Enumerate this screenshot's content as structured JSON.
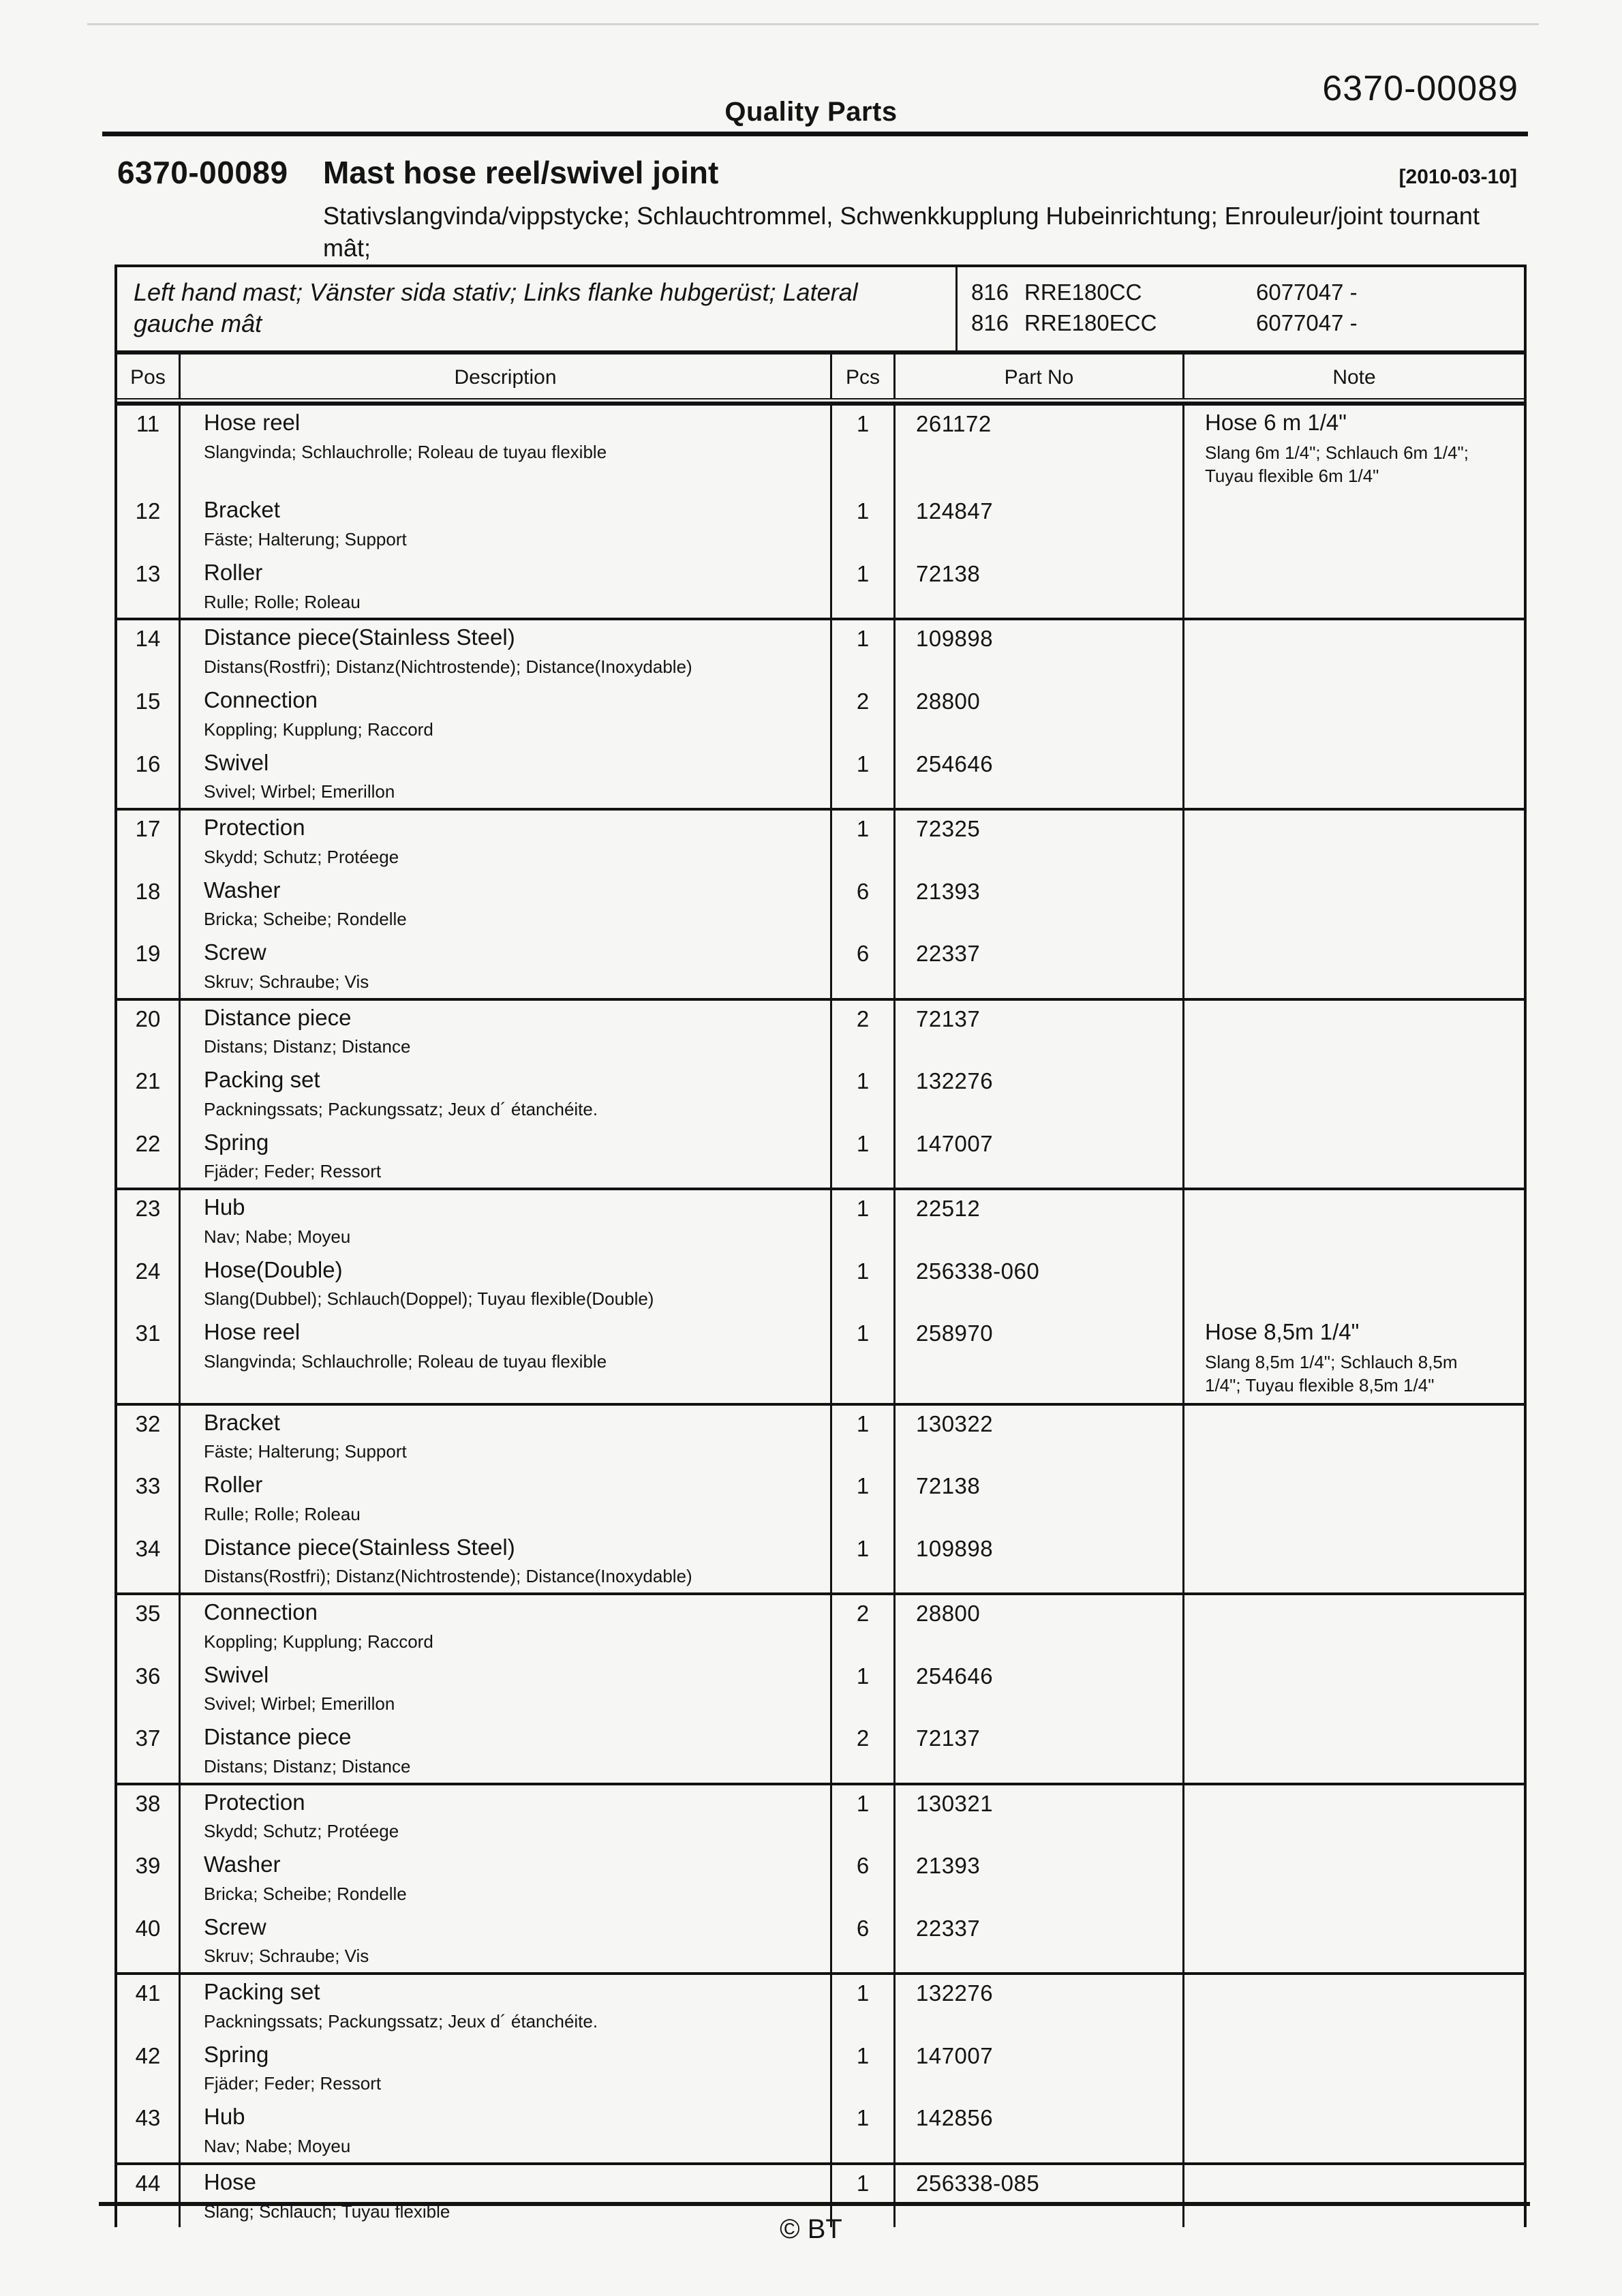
{
  "header": {
    "brand": "Quality Parts",
    "doc_number": "6370-00089"
  },
  "title_block": {
    "doc_number": "6370-00089",
    "title": "Mast hose reel/swivel joint",
    "date": "[2010-03-10]",
    "subtitle": "Stativslangvinda/vippstycke; Schlauchtrommel, Schwenkkupplung Hubeinrichtung; Enrouleur/joint tournant mât;"
  },
  "info_box": {
    "variant": "Left hand mast; Vänster sida stativ; Links flanke hubgerüst; Lateral gauche mât",
    "models": [
      {
        "code": "816",
        "name": "RRE180CC",
        "serial": "6077047 -"
      },
      {
        "code": "816",
        "name": "RRE180ECC",
        "serial": "6077047 -"
      }
    ]
  },
  "table": {
    "headers": {
      "pos": "Pos",
      "description": "Description",
      "pcs": "Pcs",
      "part_no": "Part No",
      "note": "Note"
    },
    "groups": [
      {
        "rows": [
          {
            "pos": "11",
            "desc": "Hose reel",
            "desc_sub": "Slangvinda; Schlauchrolle; Roleau de tuyau flexible",
            "pcs": "1",
            "part_no": "261172",
            "note": "Hose 6 m 1/4\"",
            "note_sub": "Slang 6m 1/4\"; Schlauch 6m 1/4\"; Tuyau flexible 6m 1/4\""
          },
          {
            "pos": "12",
            "desc": "Bracket",
            "desc_sub": "Fäste; Halterung; Support",
            "pcs": "1",
            "part_no": "124847",
            "note": "",
            "note_sub": ""
          },
          {
            "pos": "13",
            "desc": "Roller",
            "desc_sub": "Rulle; Rolle; Roleau",
            "pcs": "1",
            "part_no": "72138",
            "note": "",
            "note_sub": ""
          }
        ]
      },
      {
        "rows": [
          {
            "pos": "14",
            "desc": "Distance piece(Stainless Steel)",
            "desc_sub": "Distans(Rostfri); Distanz(Nichtrostende); Distance(Inoxydable)",
            "pcs": "1",
            "part_no": "109898",
            "note": "",
            "note_sub": ""
          },
          {
            "pos": "15",
            "desc": "Connection",
            "desc_sub": "Koppling; Kupplung; Raccord",
            "pcs": "2",
            "part_no": "28800",
            "note": "",
            "note_sub": ""
          },
          {
            "pos": "16",
            "desc": "Swivel",
            "desc_sub": "Svivel; Wirbel; Emerillon",
            "pcs": "1",
            "part_no": "254646",
            "note": "",
            "note_sub": ""
          }
        ]
      },
      {
        "rows": [
          {
            "pos": "17",
            "desc": "Protection",
            "desc_sub": "Skydd; Schutz; Protéege",
            "pcs": "1",
            "part_no": "72325",
            "note": "",
            "note_sub": ""
          },
          {
            "pos": "18",
            "desc": "Washer",
            "desc_sub": "Bricka; Scheibe; Rondelle",
            "pcs": "6",
            "part_no": "21393",
            "note": "",
            "note_sub": ""
          },
          {
            "pos": "19",
            "desc": "Screw",
            "desc_sub": "Skruv; Schraube; Vis",
            "pcs": "6",
            "part_no": "22337",
            "note": "",
            "note_sub": ""
          }
        ]
      },
      {
        "rows": [
          {
            "pos": "20",
            "desc": "Distance piece",
            "desc_sub": "Distans; Distanz; Distance",
            "pcs": "2",
            "part_no": "72137",
            "note": "",
            "note_sub": ""
          },
          {
            "pos": "21",
            "desc": "Packing set",
            "desc_sub": "Packningssats; Packungssatz; Jeux d´ étanchéite.",
            "pcs": "1",
            "part_no": "132276",
            "note": "",
            "note_sub": ""
          },
          {
            "pos": "22",
            "desc": "Spring",
            "desc_sub": "Fjäder; Feder; Ressort",
            "pcs": "1",
            "part_no": "147007",
            "note": "",
            "note_sub": ""
          }
        ]
      },
      {
        "rows": [
          {
            "pos": "23",
            "desc": "Hub",
            "desc_sub": "Nav; Nabe; Moyeu",
            "pcs": "1",
            "part_no": "22512",
            "note": "",
            "note_sub": ""
          },
          {
            "pos": "24",
            "desc": "Hose(Double)",
            "desc_sub": "Slang(Dubbel); Schlauch(Doppel); Tuyau flexible(Double)",
            "pcs": "1",
            "part_no": "256338-060",
            "note": "",
            "note_sub": ""
          },
          {
            "pos": "31",
            "desc": "Hose reel",
            "desc_sub": "Slangvinda; Schlauchrolle; Roleau de tuyau flexible",
            "pcs": "1",
            "part_no": "258970",
            "note": "Hose 8,5m 1/4\"",
            "note_sub": "Slang 8,5m 1/4\"; Schlauch 8,5m 1/4\"; Tuyau flexible 8,5m 1/4\""
          }
        ]
      },
      {
        "rows": [
          {
            "pos": "32",
            "desc": "Bracket",
            "desc_sub": "Fäste; Halterung; Support",
            "pcs": "1",
            "part_no": "130322",
            "note": "",
            "note_sub": ""
          },
          {
            "pos": "33",
            "desc": "Roller",
            "desc_sub": "Rulle; Rolle; Roleau",
            "pcs": "1",
            "part_no": "72138",
            "note": "",
            "note_sub": ""
          },
          {
            "pos": "34",
            "desc": "Distance piece(Stainless Steel)",
            "desc_sub": "Distans(Rostfri); Distanz(Nichtrostende); Distance(Inoxydable)",
            "pcs": "1",
            "part_no": "109898",
            "note": "",
            "note_sub": ""
          }
        ]
      },
      {
        "rows": [
          {
            "pos": "35",
            "desc": "Connection",
            "desc_sub": "Koppling; Kupplung; Raccord",
            "pcs": "2",
            "part_no": "28800",
            "note": "",
            "note_sub": ""
          },
          {
            "pos": "36",
            "desc": "Swivel",
            "desc_sub": "Svivel; Wirbel; Emerillon",
            "pcs": "1",
            "part_no": "254646",
            "note": "",
            "note_sub": ""
          },
          {
            "pos": "37",
            "desc": "Distance piece",
            "desc_sub": "Distans; Distanz; Distance",
            "pcs": "2",
            "part_no": "72137",
            "note": "",
            "note_sub": ""
          }
        ]
      },
      {
        "rows": [
          {
            "pos": "38",
            "desc": "Protection",
            "desc_sub": "Skydd; Schutz; Protéege",
            "pcs": "1",
            "part_no": "130321",
            "note": "",
            "note_sub": ""
          },
          {
            "pos": "39",
            "desc": "Washer",
            "desc_sub": "Bricka; Scheibe; Rondelle",
            "pcs": "6",
            "part_no": "21393",
            "note": "",
            "note_sub": ""
          },
          {
            "pos": "40",
            "desc": "Screw",
            "desc_sub": "Skruv; Schraube; Vis",
            "pcs": "6",
            "part_no": "22337",
            "note": "",
            "note_sub": ""
          }
        ]
      },
      {
        "rows": [
          {
            "pos": "41",
            "desc": "Packing set",
            "desc_sub": "Packningssats; Packungssatz; Jeux d´ étanchéite.",
            "pcs": "1",
            "part_no": "132276",
            "note": "",
            "note_sub": ""
          },
          {
            "pos": "42",
            "desc": "Spring",
            "desc_sub": "Fjäder; Feder; Ressort",
            "pcs": "1",
            "part_no": "147007",
            "note": "",
            "note_sub": ""
          },
          {
            "pos": "43",
            "desc": "Hub",
            "desc_sub": "Nav; Nabe; Moyeu",
            "pcs": "1",
            "part_no": "142856",
            "note": "",
            "note_sub": ""
          }
        ]
      },
      {
        "rows": [
          {
            "pos": "44",
            "desc": "Hose",
            "desc_sub": "Slang; Schlauch; Tuyau flexible",
            "pcs": "1",
            "part_no": "256338-085",
            "note": "",
            "note_sub": ""
          }
        ]
      }
    ]
  },
  "footer": {
    "copyright": "© BT"
  }
}
